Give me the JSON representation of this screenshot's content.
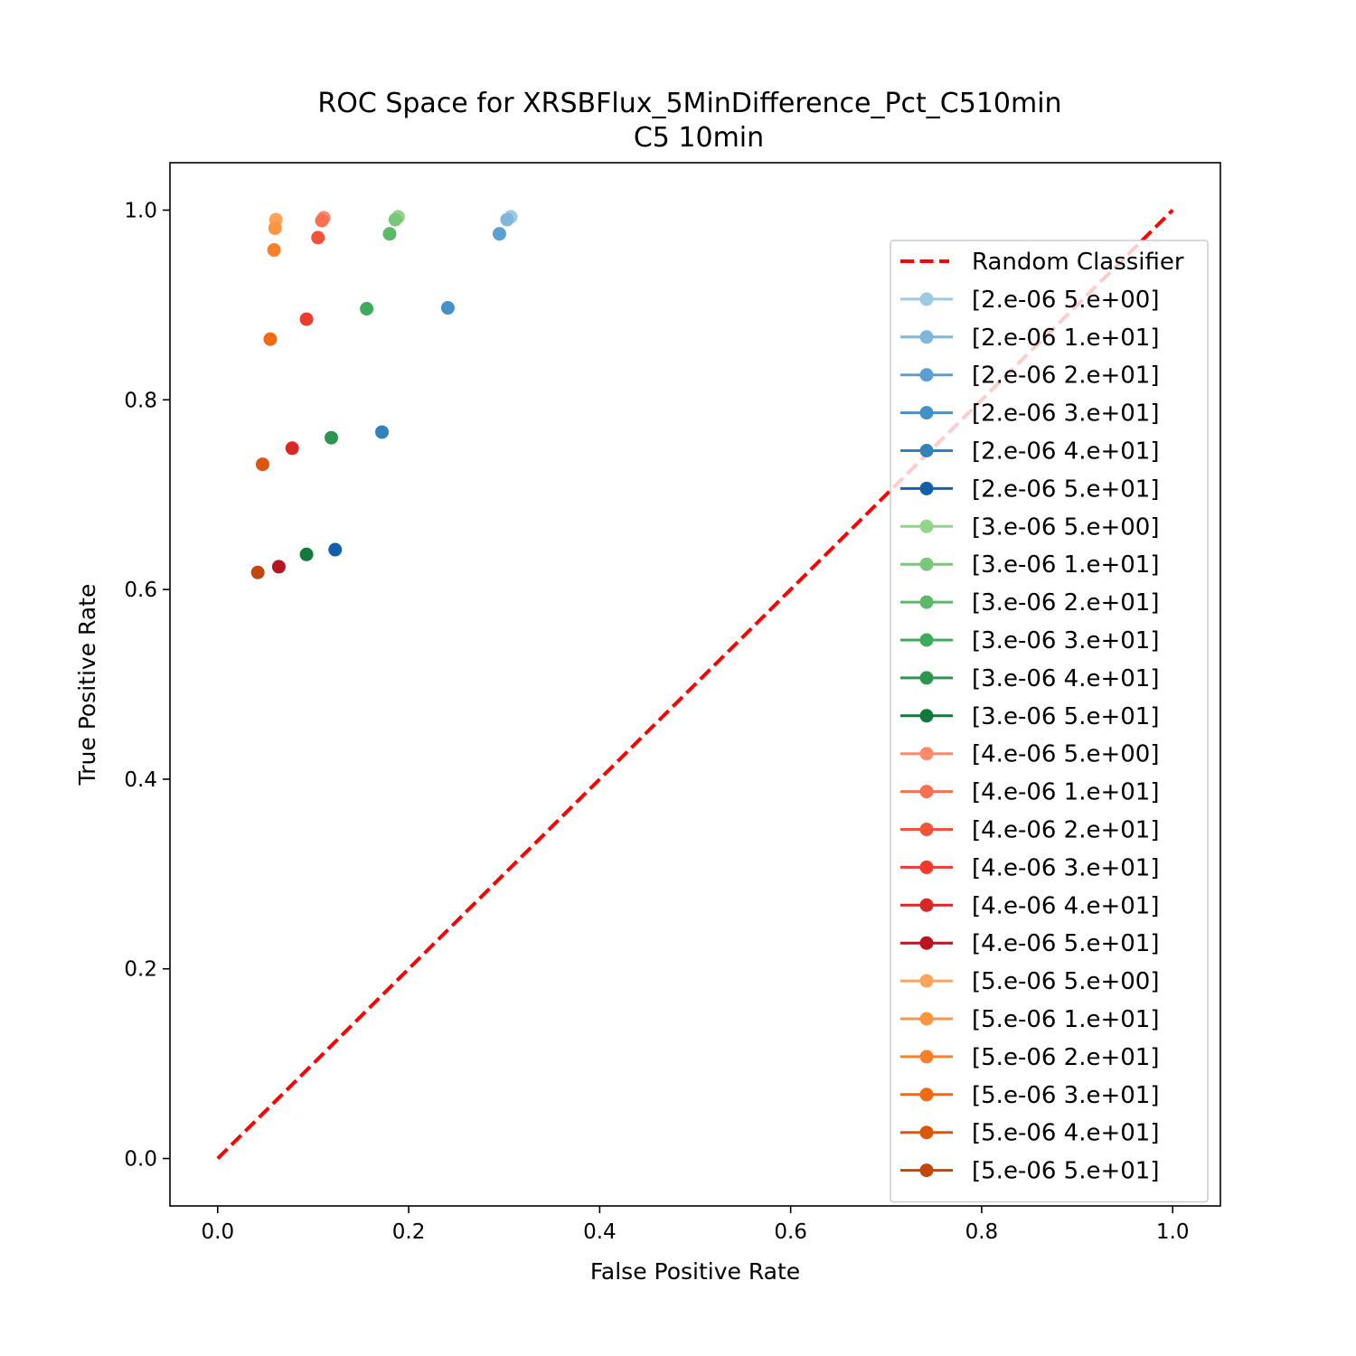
{
  "chart_data": {
    "type": "scatter",
    "title": "ROC Space for XRSBFlux_5MinDifference_Pct_C510min",
    "subtitle": "C5 10min",
    "xlabel": "False Positive Rate",
    "ylabel": "True Positive Rate",
    "xlim": [
      -0.05,
      1.05
    ],
    "ylim": [
      -0.05,
      1.05
    ],
    "xticks": [
      "0.0",
      "0.2",
      "0.4",
      "0.6",
      "0.8",
      "1.0"
    ],
    "yticks": [
      "0.0",
      "0.2",
      "0.4",
      "0.6",
      "0.8",
      "1.0"
    ],
    "grid": false,
    "legend_position": "right",
    "reference_line": {
      "name": "Random Classifier",
      "x": [
        0,
        1
      ],
      "y": [
        0,
        1
      ],
      "color": "#ff0000",
      "style": "dashed"
    },
    "series": [
      {
        "name": "[2.e-06 5.e+00]",
        "color": "#9ecae1",
        "x": [
          0.307
        ],
        "y": [
          0.993
        ]
      },
      {
        "name": "[2.e-06 1.e+01]",
        "color": "#7fb6d9",
        "x": [
          0.303
        ],
        "y": [
          0.99
        ]
      },
      {
        "name": "[2.e-06 2.e+01]",
        "color": "#5a9fd0",
        "x": [
          0.295
        ],
        "y": [
          0.975
        ]
      },
      {
        "name": "[2.e-06 3.e+01]",
        "color": "#4590c7",
        "x": [
          0.241
        ],
        "y": [
          0.897
        ]
      },
      {
        "name": "[2.e-06 4.e+01]",
        "color": "#3181bd",
        "x": [
          0.172
        ],
        "y": [
          0.766
        ]
      },
      {
        "name": "[2.e-06 5.e+01]",
        "color": "#1260ac",
        "x": [
          0.123
        ],
        "y": [
          0.642
        ]
      },
      {
        "name": "[3.e-06 5.e+00]",
        "color": "#93d48c",
        "x": [
          0.189
        ],
        "y": [
          0.993
        ]
      },
      {
        "name": "[3.e-06 1.e+01]",
        "color": "#7ac67a",
        "x": [
          0.186
        ],
        "y": [
          0.99
        ]
      },
      {
        "name": "[3.e-06 2.e+01]",
        "color": "#5db868",
        "x": [
          0.18
        ],
        "y": [
          0.975
        ]
      },
      {
        "name": "[3.e-06 3.e+01]",
        "color": "#41ab5d",
        "x": [
          0.156
        ],
        "y": [
          0.896
        ]
      },
      {
        "name": "[3.e-06 4.e+01]",
        "color": "#2d9550",
        "x": [
          0.119
        ],
        "y": [
          0.76
        ]
      },
      {
        "name": "[3.e-06 5.e+01]",
        "color": "#117a3b",
        "x": [
          0.093
        ],
        "y": [
          0.637
        ]
      },
      {
        "name": "[4.e-06 5.e+00]",
        "color": "#fc8a6b",
        "x": [
          0.111
        ],
        "y": [
          0.992
        ]
      },
      {
        "name": "[4.e-06 1.e+01]",
        "color": "#fb7050",
        "x": [
          0.109
        ],
        "y": [
          0.989
        ]
      },
      {
        "name": "[4.e-06 2.e+01]",
        "color": "#f5523a",
        "x": [
          0.105
        ],
        "y": [
          0.971
        ]
      },
      {
        "name": "[4.e-06 3.e+01]",
        "color": "#ef3b2c",
        "x": [
          0.093
        ],
        "y": [
          0.885
        ]
      },
      {
        "name": "[4.e-06 4.e+01]",
        "color": "#d92626",
        "x": [
          0.078
        ],
        "y": [
          0.749
        ]
      },
      {
        "name": "[4.e-06 5.e+01]",
        "color": "#b71520",
        "x": [
          0.064
        ],
        "y": [
          0.624
        ]
      },
      {
        "name": "[5.e-06 5.e+00]",
        "color": "#fda35c",
        "x": [
          0.061
        ],
        "y": [
          0.99
        ]
      },
      {
        "name": "[5.e-06 1.e+01]",
        "color": "#fd9543",
        "x": [
          0.06
        ],
        "y": [
          0.981
        ]
      },
      {
        "name": "[5.e-06 2.e+01]",
        "color": "#f9802a",
        "x": [
          0.059
        ],
        "y": [
          0.958
        ]
      },
      {
        "name": "[5.e-06 3.e+01]",
        "color": "#f06915",
        "x": [
          0.055
        ],
        "y": [
          0.864
        ]
      },
      {
        "name": "[5.e-06 4.e+01]",
        "color": "#dd560c",
        "x": [
          0.047
        ],
        "y": [
          0.732
        ]
      },
      {
        "name": "[5.e-06 5.e+01]",
        "color": "#c0460c",
        "x": [
          0.042
        ],
        "y": [
          0.618
        ]
      }
    ]
  }
}
